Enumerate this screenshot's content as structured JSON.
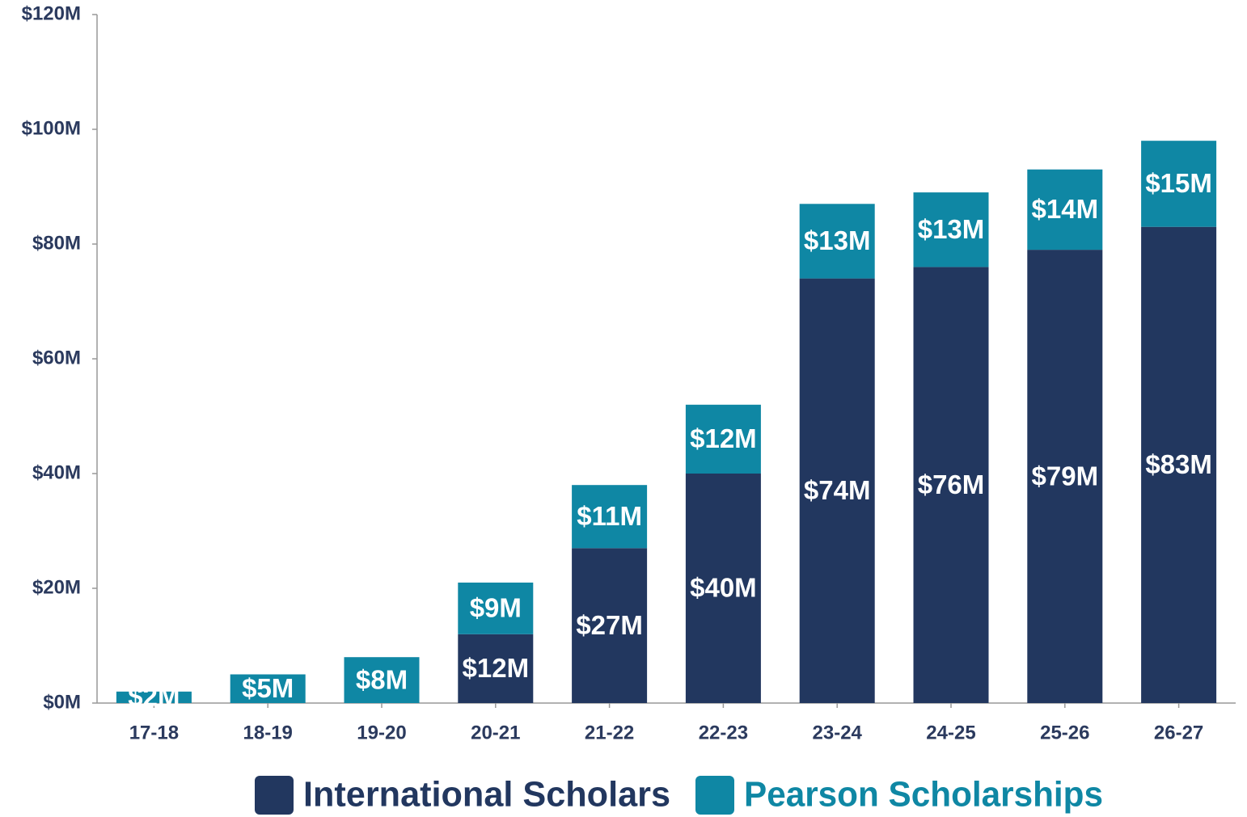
{
  "chart_data": {
    "type": "bar",
    "stacked": true,
    "categories": [
      "17-18",
      "18-19",
      "19-20",
      "20-21",
      "21-22",
      "22-23",
      "23-24",
      "24-25",
      "25-26",
      "26-27"
    ],
    "series": [
      {
        "name": "International Scholars",
        "color": "#22375f",
        "values": [
          null,
          null,
          null,
          12,
          27,
          40,
          74,
          76,
          79,
          83
        ],
        "value_labels": [
          null,
          null,
          null,
          "$12M",
          "$27M",
          "$40M",
          "$74M",
          "$76M",
          "$79M",
          "$83M"
        ]
      },
      {
        "name": "Pearson Scholarships",
        "color": "#0f87a4",
        "values": [
          2,
          5,
          8,
          9,
          11,
          12,
          13,
          13,
          14,
          15
        ],
        "value_labels": [
          "$2M",
          "$5M",
          "$8M",
          "$9M",
          "$11M",
          "$12M",
          "$13M",
          "$13M",
          "$14M",
          "$15M"
        ]
      }
    ],
    "ylim": [
      0,
      120
    ],
    "yticks": [
      {
        "value": 0,
        "label": "$0M"
      },
      {
        "value": 20,
        "label": "$20M"
      },
      {
        "value": 40,
        "label": "$40M"
      },
      {
        "value": 60,
        "label": "$60M"
      },
      {
        "value": 80,
        "label": "$80M"
      },
      {
        "value": 100,
        "label": "$100M"
      },
      {
        "value": 120,
        "label": "$120M"
      }
    ],
    "legend": "bottom"
  }
}
